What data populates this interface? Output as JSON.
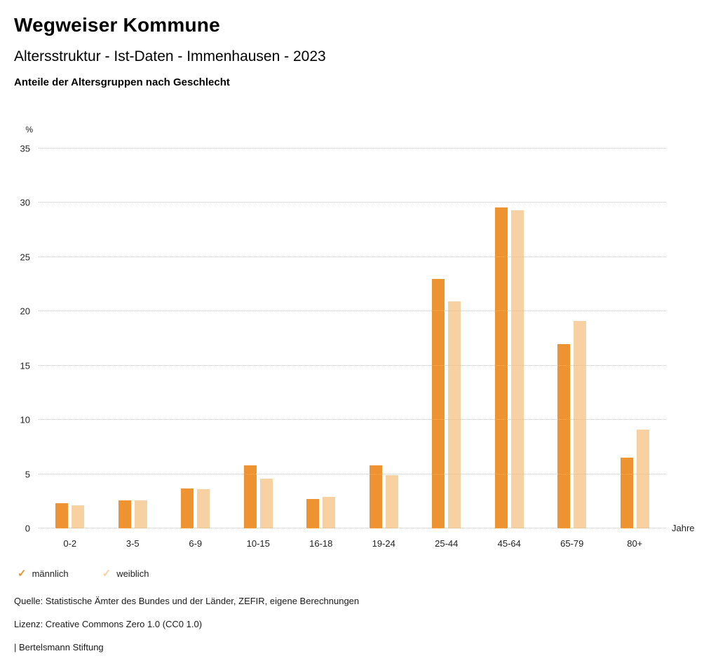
{
  "header": {
    "title": "Wegweiser Kommune",
    "subtitle": "Altersstruktur - Ist-Daten - Immenhausen - 2023",
    "chart_heading": "Anteile der Altersgruppen nach Geschlecht"
  },
  "chart_data": {
    "type": "bar",
    "title": "Anteile der Altersgruppen nach Geschlecht",
    "categories": [
      "0-2",
      "3-5",
      "6-9",
      "10-15",
      "16-18",
      "19-24",
      "25-44",
      "45-64",
      "65-79",
      "80+"
    ],
    "series": [
      {
        "name": "männlich",
        "color": "#ed9331",
        "values": [
          2.3,
          2.6,
          3.7,
          5.8,
          2.7,
          5.8,
          23.0,
          29.6,
          17.0,
          6.5
        ]
      },
      {
        "name": "weiblich",
        "color": "#f7d1a2",
        "values": [
          2.1,
          2.6,
          3.6,
          4.6,
          2.9,
          4.9,
          20.9,
          29.3,
          19.1,
          9.1
        ]
      }
    ],
    "ylabel": "%",
    "xlabel": "Jahre",
    "ylim": [
      0,
      35
    ],
    "yticks": [
      0,
      5,
      10,
      15,
      20,
      25,
      30,
      35
    ],
    "grid": "dotted horizontal",
    "legend_position": "bottom-left"
  },
  "legend": {
    "items": [
      {
        "label": "männlich",
        "color": "#ed9331",
        "icon": "check-icon"
      },
      {
        "label": "weiblich",
        "color": "#f7d1a2",
        "icon": "check-icon"
      }
    ]
  },
  "footer": {
    "source": "Quelle: Statistische Ämter des Bundes und der Länder, ZEFIR, eigene Berechnungen",
    "license": "Lizenz: Creative Commons Zero 1.0 (CC0 1.0)",
    "attribution": "| Bertelsmann Stiftung"
  }
}
